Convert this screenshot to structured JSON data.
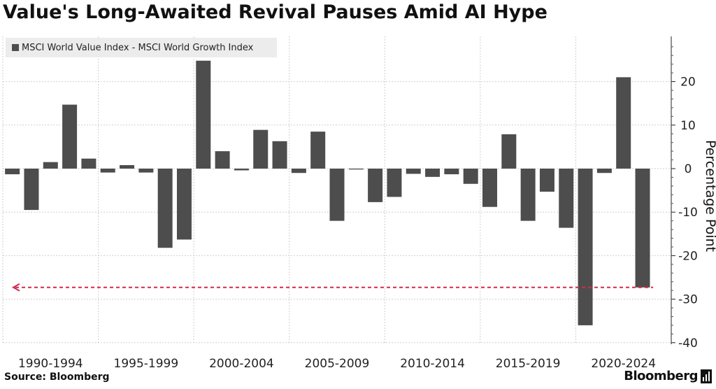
{
  "title": "Value's Long-Awaited Revival Pauses Amid AI Hype",
  "source": "Source: Bloomberg",
  "brand": "Bloomberg",
  "brand_icon": "bloomberg-terminal-icon",
  "colors": {
    "bar": "#4d4d4d",
    "grid": "#cfcfcf",
    "reference_line": "#d22a4e",
    "legend_bg": "#ececec"
  },
  "chart_data": {
    "type": "bar",
    "title": "Value's Long-Awaited Revival Pauses Amid AI Hype",
    "ylabel": "Percentage Point",
    "xlabel": "",
    "ylim": [
      -42,
      30
    ],
    "yticks": [
      20,
      10,
      0,
      -10,
      -20,
      -30,
      -40
    ],
    "grid": true,
    "legend_position": "top-left",
    "y_axis_side": "right",
    "period_labels": [
      "1990-1994",
      "1995-1999",
      "2000-2004",
      "2005-2009",
      "2010-2014",
      "2015-2019",
      "2020-2024"
    ],
    "categories": [
      "1990",
      "1991",
      "1992",
      "1993",
      "1994",
      "1995",
      "1996",
      "1997",
      "1998",
      "1999",
      "2000",
      "2001",
      "2002",
      "2003",
      "2004",
      "2005",
      "2006",
      "2007",
      "2008",
      "2009",
      "2010",
      "2011",
      "2012",
      "2013",
      "2014",
      "2015",
      "2016",
      "2017",
      "2018",
      "2019",
      "2020",
      "2021",
      "2022",
      "2023",
      "2024"
    ],
    "series": [
      {
        "name": "MSCI World Value Index - MSCI World Growth Index",
        "values": [
          -1.3,
          -9.5,
          1.5,
          14.7,
          2.3,
          -0.9,
          0.8,
          -0.9,
          -18.2,
          -16.3,
          24.8,
          4.0,
          -0.4,
          8.9,
          6.3,
          -1.0,
          8.5,
          -12.0,
          -0.2,
          -7.7,
          -6.5,
          -1.2,
          -1.9,
          -1.3,
          -3.5,
          -8.8,
          7.9,
          -12.0,
          -5.3,
          -13.6,
          -36.0,
          -1.0,
          21.0,
          -27.3,
          null
        ],
        "color": "#4d4d4d"
      }
    ],
    "reference_line": {
      "y": -27.3,
      "style": "dashed",
      "color": "#d22a4e",
      "direction": "left-arrow"
    }
  }
}
